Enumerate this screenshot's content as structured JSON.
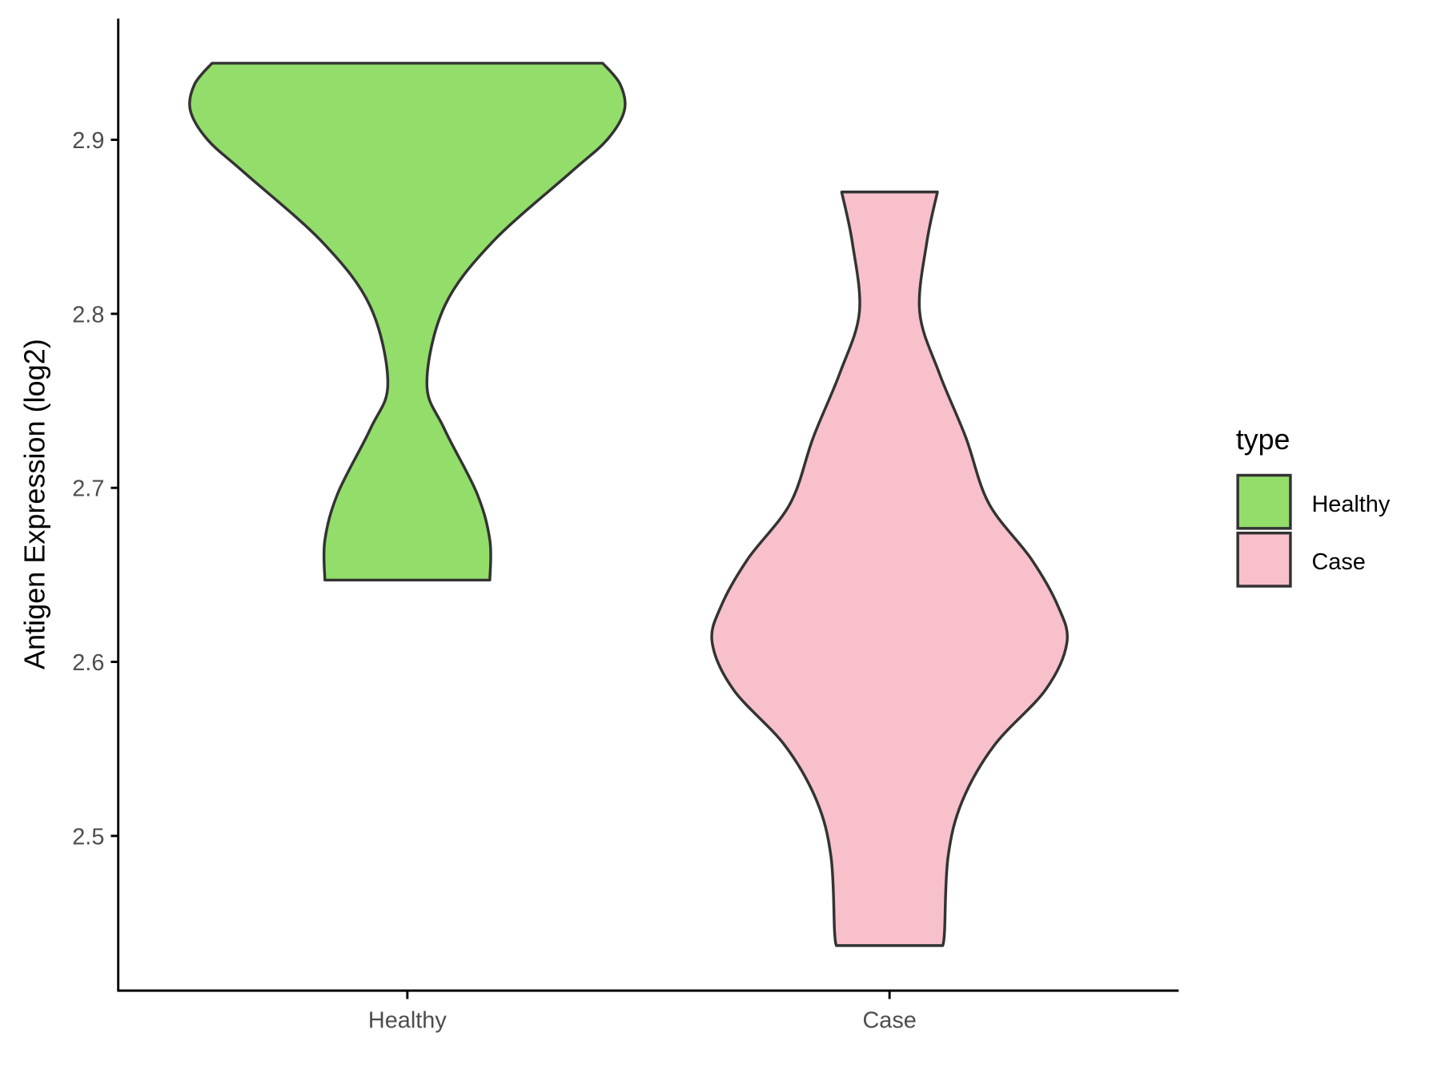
{
  "chart_data": {
    "type": "violin",
    "title": "",
    "xlabel": "",
    "ylabel": "Antigen Expression (log2)",
    "categories": [
      "Healthy",
      "Case"
    ],
    "ylim": [
      2.415,
      2.97
    ],
    "yticks": [
      2.5,
      2.6,
      2.7,
      2.8,
      2.9
    ],
    "ytick_labels": [
      "2.5",
      "2.6",
      "2.7",
      "2.8",
      "2.9"
    ],
    "grid": false,
    "legend": {
      "title": "type",
      "position": "right",
      "entries": [
        "Healthy",
        "Case"
      ]
    },
    "colors": {
      "Healthy": "#93DD6A",
      "Case": "#F7C0CB",
      "outline": "#333333"
    },
    "series": [
      {
        "name": "Healthy",
        "min": 2.647,
        "max": 2.944,
        "density_profile": [
          [
            2.944,
            0.9
          ],
          [
            2.932,
            0.98
          ],
          [
            2.917,
            1.0
          ],
          [
            2.9,
            0.92
          ],
          [
            2.881,
            0.75
          ],
          [
            2.841,
            0.39
          ],
          [
            2.804,
            0.17
          ],
          [
            2.76,
            0.09
          ],
          [
            2.734,
            0.17
          ],
          [
            2.697,
            0.32
          ],
          [
            2.67,
            0.38
          ],
          [
            2.647,
            0.38
          ]
        ]
      },
      {
        "name": "Case",
        "min": 2.437,
        "max": 2.87,
        "density_profile": [
          [
            2.87,
            0.27
          ],
          [
            2.841,
            0.21
          ],
          [
            2.801,
            0.17
          ],
          [
            2.766,
            0.28
          ],
          [
            2.729,
            0.43
          ],
          [
            2.691,
            0.56
          ],
          [
            2.659,
            0.8
          ],
          [
            2.632,
            0.95
          ],
          [
            2.611,
            1.0
          ],
          [
            2.584,
            0.88
          ],
          [
            2.552,
            0.59
          ],
          [
            2.52,
            0.41
          ],
          [
            2.488,
            0.33
          ],
          [
            2.445,
            0.31
          ],
          [
            2.437,
            0.3
          ]
        ]
      }
    ]
  }
}
